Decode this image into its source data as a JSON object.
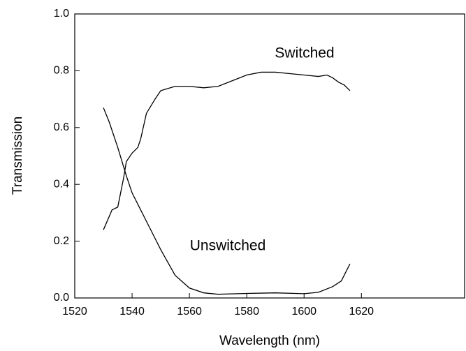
{
  "chart_data": {
    "type": "line",
    "x_label": "Wavelength (nm)",
    "y_label": "Transmission",
    "xlim": [
      1520,
      1656
    ],
    "ylim": [
      0,
      1
    ],
    "xticks": [
      1520,
      1540,
      1560,
      1580,
      1600,
      1620
    ],
    "yticks": [
      {
        "value": 0,
        "label": "0.0"
      },
      0.2,
      0.4,
      0.6,
      0.8,
      {
        "value": 1,
        "label": "1.0"
      }
    ],
    "series": [
      {
        "name": "Switched",
        "color": "#000000",
        "x": [
          1530,
          1533,
          1535,
          1537,
          1538,
          1540,
          1542,
          1543,
          1545,
          1548,
          1550,
          1555,
          1560,
          1565,
          1570,
          1575,
          1580,
          1585,
          1590,
          1595,
          1600,
          1605,
          1608,
          1610,
          1612,
          1614,
          1616
        ],
        "values": [
          0.24,
          0.31,
          0.32,
          0.42,
          0.48,
          0.51,
          0.53,
          0.56,
          0.65,
          0.7,
          0.73,
          0.745,
          0.745,
          0.74,
          0.745,
          0.765,
          0.785,
          0.795,
          0.795,
          0.79,
          0.785,
          0.78,
          0.785,
          0.775,
          0.76,
          0.75,
          0.73
        ]
      },
      {
        "name": "Unswitched",
        "color": "#000000",
        "x": [
          1530,
          1532,
          1535,
          1538,
          1540,
          1543,
          1546,
          1550,
          1555,
          1560,
          1565,
          1570,
          1580,
          1590,
          1600,
          1605,
          1610,
          1613,
          1616
        ],
        "values": [
          0.67,
          0.62,
          0.53,
          0.43,
          0.37,
          0.31,
          0.25,
          0.17,
          0.08,
          0.035,
          0.018,
          0.013,
          0.016,
          0.018,
          0.015,
          0.02,
          0.04,
          0.06,
          0.12
        ]
      }
    ]
  }
}
